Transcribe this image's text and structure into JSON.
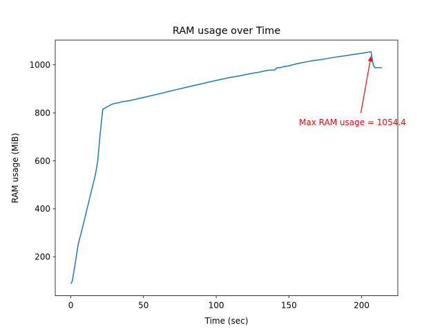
{
  "chart_data": {
    "type": "line",
    "title": "RAM usage over Time",
    "xlabel": "Time (sec)",
    "ylabel": "RAM usage (MiB)",
    "xlim": [
      -10.7,
      224.9
    ],
    "ylim": [
      37.5,
      1103
    ],
    "xticks": [
      0,
      50,
      100,
      150,
      200
    ],
    "yticks": [
      200,
      400,
      600,
      800,
      1000
    ],
    "grid": false,
    "line_color": "#1f77b4",
    "series": [
      {
        "x": [
          0,
          1,
          3,
          5,
          8,
          11,
          14,
          17,
          18.5,
          20,
          21,
          22,
          23,
          24,
          26,
          28,
          30,
          33,
          35,
          40,
          50,
          60,
          70,
          80,
          90,
          100,
          110,
          118,
          120,
          122,
          125,
          128,
          130,
          133,
          136,
          140,
          142,
          143,
          145,
          147,
          150,
          155,
          160,
          165,
          170,
          175,
          180,
          185,
          190,
          195,
          200,
          203,
          206.5,
          208,
          209,
          210,
          212,
          214
        ],
        "values": [
          88,
          98,
          170,
          250,
          320,
          395,
          470,
          545,
          600,
          700,
          760,
          815,
          818,
          822,
          828,
          835,
          839,
          842,
          846,
          850,
          864,
          878,
          893,
          907,
          921,
          935,
          948,
          956,
          960,
          961,
          965,
          968,
          970,
          974,
          978,
          978,
          988,
          988,
          990,
          993,
          996,
          1004,
          1010,
          1016,
          1020,
          1025,
          1030,
          1035,
          1039,
          1044,
          1048,
          1051,
          1054.4,
          1000,
          988,
          988,
          988,
          988
        ]
      }
    ],
    "annotation": {
      "text": "Max RAM usage = 1054.4",
      "x": 206.5,
      "y": 1054.4,
      "text_x": 157,
      "text_y": 748,
      "arrow_tail_x": 199.5,
      "arrow_tail_y": 800,
      "color": "#ff0000"
    }
  }
}
